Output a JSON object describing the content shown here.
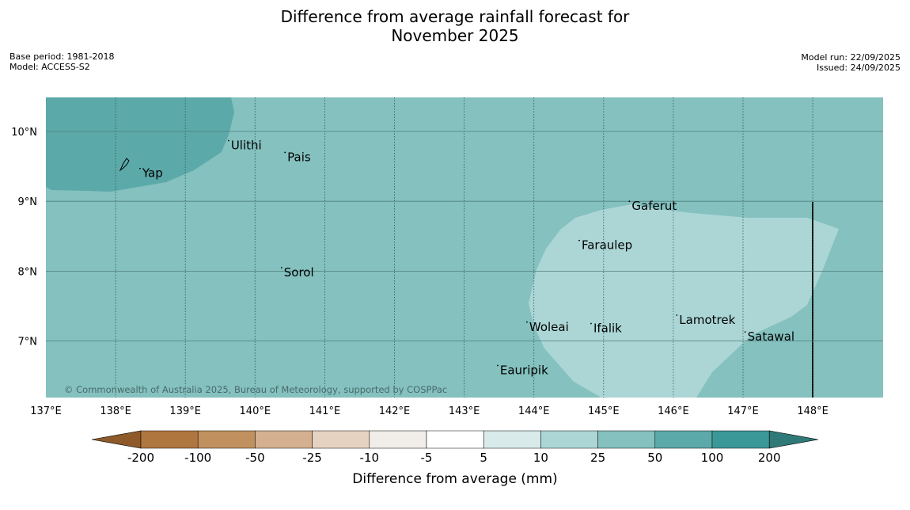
{
  "title_line1": "Difference from average rainfall forecast for",
  "title_line2": "November 2025",
  "meta_left": {
    "base_period": "Base period: 1981-2018",
    "model": "Model: ACCESS-S2"
  },
  "meta_right": {
    "model_run": "Model run: 22/09/2025",
    "issued": "Issued: 24/09/2025"
  },
  "copyright": "© Commonwealth of Australia 2025, Bureau of Meteorology, supported by COSPPac",
  "lon_labels": [
    "137°E",
    "138°E",
    "139°E",
    "140°E",
    "141°E",
    "142°E",
    "143°E",
    "144°E",
    "145°E",
    "146°E",
    "147°E",
    "148°E"
  ],
  "lat_labels": [
    "10°N",
    "9°N",
    "8°N",
    "7°N"
  ],
  "places": [
    {
      "name": "Yap",
      "lon": 138.35,
      "lat": 9.47
    },
    {
      "name": "Ulithi",
      "lon": 139.62,
      "lat": 9.87
    },
    {
      "name": "Pais",
      "lon": 140.43,
      "lat": 9.7
    },
    {
      "name": "Gaferut",
      "lon": 145.37,
      "lat": 9.0
    },
    {
      "name": "Faraulep",
      "lon": 144.65,
      "lat": 8.44
    },
    {
      "name": "Sorol",
      "lon": 140.38,
      "lat": 8.05
    },
    {
      "name": "Lamotrek",
      "lon": 146.05,
      "lat": 7.37
    },
    {
      "name": "Woleai",
      "lon": 143.9,
      "lat": 7.27
    },
    {
      "name": "Ifalik",
      "lon": 144.82,
      "lat": 7.25
    },
    {
      "name": "Satawal",
      "lon": 147.03,
      "lat": 7.13
    },
    {
      "name": "Eauripik",
      "lon": 143.48,
      "lat": 6.65
    }
  ],
  "colorbar": {
    "title": "Difference from average (mm)",
    "tick_labels": [
      "-200",
      "-100",
      "-50",
      "-25",
      "-10",
      "-5",
      "5",
      "10",
      "25",
      "50",
      "100",
      "200"
    ],
    "colors": [
      "#b07640",
      "#c0915f",
      "#d4b090",
      "#e6d2c0",
      "#f1ede8",
      "#ffffff",
      "#d8ebea",
      "#acd6d6",
      "#84c1bf",
      "#5ca9a9",
      "#3b9898"
    ],
    "extend_low_color": "#8e5a2a",
    "extend_high_color": "#2f7a78"
  },
  "colors": {
    "background_field": "#84c1bf",
    "wet_region": "#5ca9a9",
    "light_region": "#acd6d6"
  }
}
